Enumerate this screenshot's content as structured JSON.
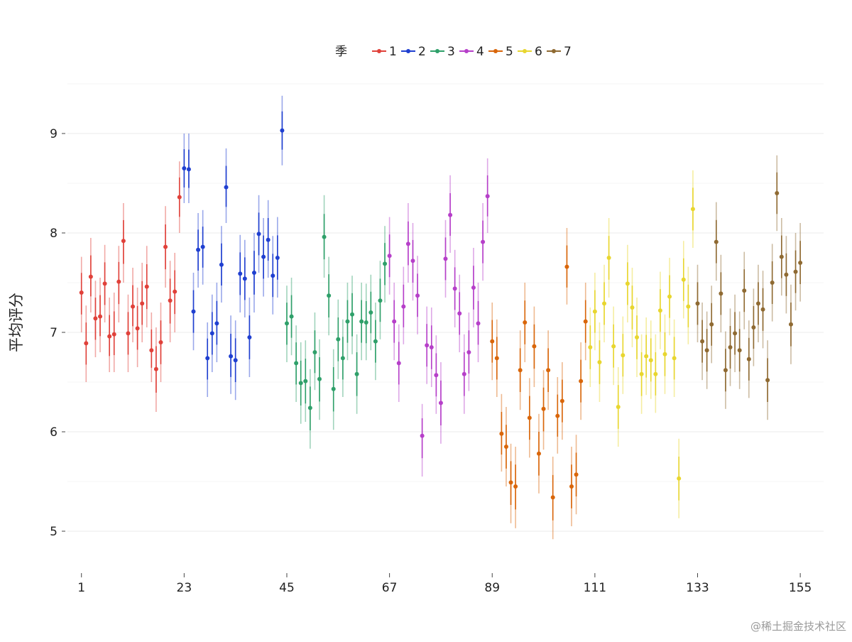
{
  "chart_data": {
    "type": "scatter",
    "title": "",
    "xlabel": "",
    "ylabel": "平均评分",
    "legend_title": "季",
    "legend_position": "top",
    "xlim": [
      -2,
      160
    ],
    "ylim": [
      4.7,
      9.5
    ],
    "xticks": [
      1,
      23,
      45,
      67,
      89,
      111,
      133,
      155
    ],
    "yticks": [
      5,
      6,
      7,
      8,
      9
    ],
    "grid": true,
    "error_bars": true,
    "series": [
      {
        "name": "1",
        "color": "#E0413A",
        "points": [
          [
            1,
            7.4,
            7.0,
            7.76
          ],
          [
            2,
            6.89,
            6.5,
            7.27
          ],
          [
            3,
            7.56,
            7.2,
            7.95
          ],
          [
            4,
            7.14,
            6.75,
            7.52
          ],
          [
            5,
            7.16,
            6.8,
            7.55
          ],
          [
            6,
            7.49,
            7.1,
            7.88
          ],
          [
            7,
            6.96,
            6.6,
            7.35
          ],
          [
            8,
            6.98,
            6.6,
            7.4
          ],
          [
            9,
            7.51,
            7.1,
            7.87
          ],
          [
            10,
            7.92,
            7.5,
            8.3
          ],
          [
            11,
            6.99,
            6.6,
            7.38
          ],
          [
            12,
            7.26,
            6.9,
            7.65
          ],
          [
            13,
            7.04,
            6.65,
            7.45
          ],
          [
            14,
            7.29,
            6.9,
            7.7
          ],
          [
            15,
            7.46,
            7.05,
            7.87
          ],
          [
            16,
            6.82,
            6.5,
            7.2
          ],
          [
            17,
            6.63,
            6.2,
            7.05
          ],
          [
            18,
            6.9,
            6.5,
            7.3
          ],
          [
            19,
            7.86,
            7.45,
            8.27
          ],
          [
            20,
            7.32,
            6.9,
            7.72
          ],
          [
            21,
            7.41,
            7.0,
            7.8
          ],
          [
            22,
            8.36,
            8.0,
            8.72
          ]
        ]
      },
      {
        "name": "2",
        "color": "#1F3FD0",
        "points": [
          [
            23,
            8.65,
            8.3,
            9.0
          ],
          [
            24,
            8.64,
            8.3,
            9.0
          ],
          [
            25,
            7.21,
            6.82,
            7.6
          ],
          [
            26,
            7.83,
            7.45,
            8.2
          ],
          [
            27,
            7.86,
            7.48,
            8.23
          ],
          [
            28,
            6.74,
            6.35,
            7.1
          ],
          [
            29,
            6.99,
            6.6,
            7.38
          ],
          [
            30,
            7.09,
            6.7,
            7.5
          ],
          [
            31,
            7.68,
            7.3,
            8.07
          ],
          [
            32,
            8.46,
            8.1,
            8.85
          ],
          [
            33,
            6.76,
            6.38,
            7.17
          ],
          [
            34,
            6.72,
            6.32,
            7.12
          ],
          [
            35,
            7.59,
            7.2,
            7.98
          ],
          [
            36,
            7.54,
            7.15,
            7.93
          ],
          [
            37,
            6.95,
            6.55,
            7.35
          ],
          [
            38,
            7.6,
            7.2,
            8.0
          ],
          [
            39,
            7.99,
            7.6,
            8.38
          ],
          [
            40,
            7.76,
            7.36,
            8.15
          ],
          [
            41,
            7.93,
            7.55,
            8.33
          ],
          [
            42,
            7.57,
            7.18,
            7.97
          ],
          [
            43,
            7.75,
            7.35,
            8.16
          ],
          [
            44,
            9.03,
            8.68,
            9.38
          ]
        ]
      },
      {
        "name": "3",
        "color": "#2FA06A",
        "points": [
          [
            45,
            7.09,
            6.7,
            7.47
          ],
          [
            46,
            7.16,
            6.77,
            7.55
          ],
          [
            47,
            6.69,
            6.3,
            7.07
          ],
          [
            48,
            6.49,
            6.08,
            6.9
          ],
          [
            49,
            6.51,
            6.1,
            6.92
          ],
          [
            50,
            6.24,
            5.83,
            6.63
          ],
          [
            51,
            6.8,
            6.42,
            7.2
          ],
          [
            52,
            6.53,
            6.12,
            6.93
          ],
          [
            53,
            7.96,
            7.55,
            8.38
          ],
          [
            54,
            7.37,
            6.97,
            7.76
          ],
          [
            55,
            6.43,
            6.02,
            6.83
          ],
          [
            56,
            6.93,
            6.53,
            7.33
          ],
          [
            57,
            6.74,
            6.35,
            7.13
          ],
          [
            58,
            7.11,
            6.72,
            7.5
          ],
          [
            59,
            7.18,
            6.78,
            7.57
          ],
          [
            60,
            6.58,
            6.18,
            6.98
          ],
          [
            61,
            7.11,
            6.72,
            7.5
          ],
          [
            62,
            7.1,
            6.72,
            7.49
          ],
          [
            63,
            7.2,
            6.82,
            7.58
          ],
          [
            64,
            6.91,
            6.52,
            7.3
          ],
          [
            65,
            7.32,
            6.93,
            7.72
          ],
          [
            66,
            7.69,
            7.3,
            8.07
          ]
        ]
      },
      {
        "name": "4",
        "color": "#B63FC9",
        "points": [
          [
            67,
            7.77,
            7.38,
            8.16
          ],
          [
            68,
            7.11,
            6.72,
            7.5
          ],
          [
            69,
            6.69,
            6.3,
            7.08
          ],
          [
            70,
            7.26,
            6.88,
            7.66
          ],
          [
            71,
            7.89,
            7.5,
            8.3
          ],
          [
            72,
            7.72,
            7.32,
            8.1
          ],
          [
            73,
            7.37,
            6.98,
            7.77
          ],
          [
            74,
            5.96,
            5.55,
            6.28
          ],
          [
            75,
            6.87,
            6.48,
            7.26
          ],
          [
            76,
            6.85,
            6.45,
            7.25
          ],
          [
            77,
            6.57,
            6.18,
            6.97
          ],
          [
            78,
            6.29,
            5.88,
            6.7
          ],
          [
            79,
            7.74,
            7.35,
            8.13
          ],
          [
            80,
            8.18,
            7.8,
            8.58
          ],
          [
            81,
            7.44,
            7.05,
            7.83
          ],
          [
            82,
            7.19,
            6.8,
            7.58
          ],
          [
            83,
            6.58,
            6.18,
            6.98
          ],
          [
            84,
            6.8,
            6.41,
            7.2
          ],
          [
            85,
            7.45,
            7.05,
            7.85
          ],
          [
            86,
            7.09,
            6.7,
            7.5
          ],
          [
            87,
            7.91,
            7.52,
            8.3
          ],
          [
            88,
            8.37,
            8.0,
            8.75
          ]
        ]
      },
      {
        "name": "5",
        "color": "#D9660A",
        "points": [
          [
            89,
            6.91,
            6.52,
            7.3
          ],
          [
            90,
            6.74,
            6.35,
            7.13
          ],
          [
            91,
            5.98,
            5.6,
            6.38
          ],
          [
            92,
            5.85,
            5.45,
            6.25
          ],
          [
            93,
            5.49,
            5.08,
            5.88
          ],
          [
            94,
            5.45,
            5.03,
            5.85
          ],
          [
            95,
            6.62,
            6.22,
            7.02
          ],
          [
            96,
            7.1,
            6.7,
            7.5
          ],
          [
            97,
            6.14,
            5.74,
            6.54
          ],
          [
            98,
            6.86,
            6.45,
            7.26
          ],
          [
            99,
            5.78,
            5.38,
            6.18
          ],
          [
            100,
            6.23,
            5.82,
            6.62
          ],
          [
            101,
            6.62,
            6.22,
            7.02
          ],
          [
            102,
            5.34,
            4.92,
            5.75
          ],
          [
            103,
            6.16,
            5.78,
            6.55
          ],
          [
            104,
            6.31,
            5.92,
            6.7
          ],
          [
            105,
            7.66,
            7.28,
            8.05
          ],
          [
            106,
            5.45,
            5.05,
            5.85
          ],
          [
            107,
            5.57,
            5.17,
            5.97
          ],
          [
            108,
            6.51,
            6.12,
            6.9
          ],
          [
            109,
            7.11,
            6.72,
            7.5
          ]
        ]
      },
      {
        "name": "6",
        "color": "#E8D62F",
        "points": [
          [
            110,
            6.85,
            6.45,
            7.25
          ],
          [
            111,
            7.21,
            6.82,
            7.6
          ],
          [
            112,
            6.7,
            6.3,
            7.1
          ],
          [
            113,
            7.29,
            6.9,
            7.68
          ],
          [
            114,
            7.75,
            7.35,
            8.15
          ],
          [
            115,
            6.86,
            6.47,
            7.26
          ],
          [
            116,
            6.25,
            5.85,
            6.65
          ],
          [
            117,
            6.77,
            6.38,
            7.16
          ],
          [
            118,
            7.49,
            7.1,
            7.88
          ],
          [
            119,
            7.25,
            6.85,
            7.65
          ],
          [
            120,
            6.95,
            6.55,
            7.35
          ],
          [
            121,
            6.58,
            6.18,
            6.98
          ],
          [
            122,
            6.76,
            6.37,
            7.15
          ],
          [
            123,
            6.72,
            6.33,
            7.12
          ],
          [
            124,
            6.58,
            6.19,
            6.98
          ],
          [
            125,
            7.22,
            6.83,
            7.61
          ],
          [
            126,
            6.78,
            6.38,
            7.18
          ],
          [
            127,
            7.36,
            6.97,
            7.75
          ],
          [
            128,
            6.74,
            6.35,
            7.13
          ],
          [
            129,
            5.53,
            5.13,
            5.93
          ],
          [
            130,
            7.53,
            7.14,
            7.92
          ],
          [
            131,
            7.26,
            6.88,
            7.66
          ],
          [
            132,
            8.24,
            7.85,
            8.63
          ]
        ]
      },
      {
        "name": "7",
        "color": "#8F6A32",
        "points": [
          [
            133,
            7.29,
            6.9,
            7.68
          ],
          [
            134,
            6.91,
            6.52,
            7.3
          ],
          [
            135,
            6.82,
            6.43,
            7.21
          ],
          [
            136,
            7.08,
            6.69,
            7.47
          ],
          [
            137,
            7.91,
            7.52,
            8.31
          ],
          [
            138,
            7.39,
            7.0,
            7.78
          ],
          [
            139,
            6.62,
            6.23,
            7.01
          ],
          [
            140,
            6.85,
            6.46,
            7.24
          ],
          [
            141,
            6.99,
            6.6,
            7.38
          ],
          [
            142,
            6.82,
            6.43,
            7.21
          ],
          [
            143,
            7.42,
            7.03,
            7.81
          ],
          [
            144,
            6.73,
            6.34,
            7.12
          ],
          [
            145,
            7.05,
            6.66,
            7.44
          ],
          [
            146,
            7.29,
            6.9,
            7.68
          ],
          [
            147,
            7.23,
            6.84,
            7.62
          ],
          [
            148,
            6.52,
            6.12,
            6.92
          ],
          [
            149,
            7.5,
            7.11,
            7.89
          ],
          [
            150,
            8.4,
            8.02,
            8.78
          ],
          [
            151,
            7.76,
            7.37,
            8.15
          ],
          [
            152,
            7.58,
            7.19,
            7.97
          ],
          [
            153,
            7.08,
            6.68,
            7.48
          ],
          [
            154,
            7.61,
            7.22,
            8.0
          ],
          [
            155,
            7.7,
            7.31,
            8.1
          ]
        ]
      }
    ]
  },
  "watermark": {
    "text": "@稀土掘金技术社区"
  }
}
